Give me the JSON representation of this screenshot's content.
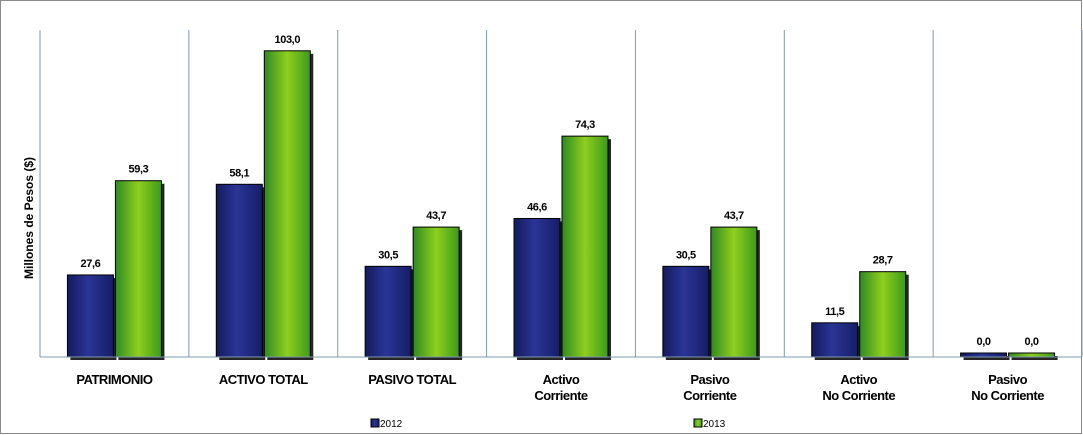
{
  "chart_data": {
    "type": "bar",
    "title": "",
    "xlabel": "",
    "ylabel": "Millones de Pesos ($)",
    "ylim": [
      0,
      110
    ],
    "grid": "vertical-category-dividers",
    "legend_placement": "bottom",
    "categories": [
      [
        "PATRIMONIO"
      ],
      [
        "ACTIVO TOTAL"
      ],
      [
        "PASIVO TOTAL"
      ],
      [
        "Activo",
        "Corriente"
      ],
      [
        "Pasivo",
        "Corriente"
      ],
      [
        "Activo",
        "No Corriente"
      ],
      [
        "Pasivo",
        "No Corriente"
      ]
    ],
    "series": [
      {
        "name": "2012",
        "color": "#1f2a80",
        "values": [
          27.6,
          58.1,
          30.5,
          46.6,
          30.5,
          11.5,
          0.0
        ],
        "labels": [
          "27,6",
          "58,1",
          "30,5",
          "46,6",
          "30,5",
          "11,5",
          "0,0"
        ]
      },
      {
        "name": "2013",
        "color": "#5fb81c",
        "values": [
          59.3,
          103.0,
          43.7,
          74.3,
          43.7,
          28.7,
          0.0
        ],
        "labels": [
          "59,3",
          "103,0",
          "43,7",
          "74,3",
          "43,7",
          "28,7",
          "0,0"
        ]
      }
    ]
  }
}
